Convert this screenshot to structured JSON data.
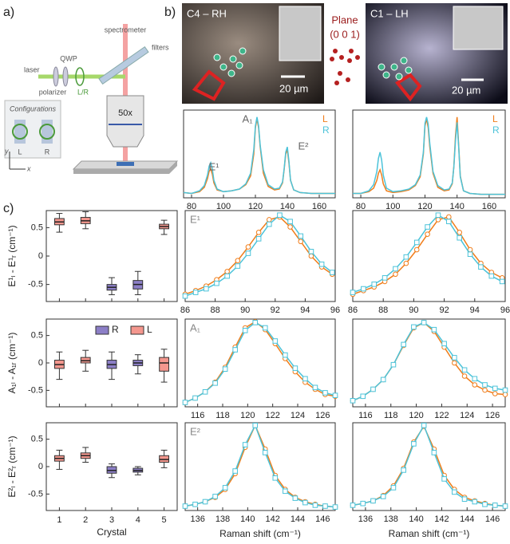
{
  "panel_labels": [
    "a)",
    "b)",
    "c)"
  ],
  "setup": {
    "spectrometer": "spectrometer",
    "filters": "filters",
    "laser": "laser",
    "qwp": "QWP",
    "polarizer": "polarizer",
    "handedness": "L/R",
    "objective": "50x",
    "configurations": "Configurations",
    "config_left": "L",
    "config_right": "R",
    "axis_y": "y",
    "axis_x": "x"
  },
  "micrographs": [
    {
      "title": "C4 – RH",
      "scale": "20 µm"
    },
    {
      "title": "C1 – LH",
      "scale": "20 µm"
    }
  ],
  "plane": {
    "label": "Plane",
    "index": "(0 0 1)"
  },
  "chart_data": [
    {
      "type": "line",
      "xlim": [
        75,
        170
      ],
      "xticks": [
        80,
        100,
        120,
        140,
        160
      ],
      "ylim": [
        0,
        1
      ],
      "annotations": [
        "E¹",
        "A₁",
        "E²"
      ],
      "x": [
        75,
        80,
        85,
        88,
        90,
        91,
        92,
        93,
        94,
        96,
        100,
        105,
        110,
        114,
        117,
        119,
        120,
        121,
        122,
        123,
        125,
        128,
        132,
        135,
        137,
        138,
        139,
        140,
        141,
        142,
        144,
        148,
        155,
        162,
        170
      ],
      "series": [
        {
          "name": "L",
          "color": "#f07d1a",
          "values": [
            0.06,
            0.05,
            0.07,
            0.12,
            0.22,
            0.3,
            0.33,
            0.27,
            0.17,
            0.09,
            0.07,
            0.08,
            0.1,
            0.15,
            0.25,
            0.5,
            0.8,
            0.9,
            0.8,
            0.58,
            0.28,
            0.13,
            0.09,
            0.1,
            0.17,
            0.32,
            0.5,
            0.55,
            0.4,
            0.2,
            0.09,
            0.06,
            0.05,
            0.05,
            0.05
          ]
        },
        {
          "name": "R",
          "color": "#4cc3d9",
          "values": [
            0.06,
            0.05,
            0.08,
            0.14,
            0.26,
            0.36,
            0.4,
            0.33,
            0.2,
            0.1,
            0.07,
            0.08,
            0.1,
            0.16,
            0.28,
            0.55,
            0.82,
            0.92,
            0.82,
            0.6,
            0.32,
            0.15,
            0.1,
            0.11,
            0.18,
            0.33,
            0.52,
            0.58,
            0.42,
            0.2,
            0.09,
            0.06,
            0.05,
            0.05,
            0.05
          ]
        }
      ]
    },
    {
      "type": "line",
      "xlim": [
        75,
        170
      ],
      "xticks": [
        80,
        100,
        120,
        140,
        160
      ],
      "ylim": [
        0,
        1
      ],
      "x": [
        75,
        80,
        85,
        88,
        90,
        91,
        92,
        93,
        94,
        96,
        100,
        105,
        110,
        114,
        117,
        119,
        120,
        121,
        122,
        123,
        125,
        128,
        132,
        135,
        137,
        138,
        139,
        140,
        141,
        142,
        144,
        148,
        155,
        162,
        170
      ],
      "series": [
        {
          "name": "L",
          "color": "#f07d1a",
          "values": [
            0.05,
            0.05,
            0.07,
            0.11,
            0.2,
            0.28,
            0.32,
            0.26,
            0.16,
            0.08,
            0.06,
            0.07,
            0.09,
            0.14,
            0.24,
            0.5,
            0.82,
            0.9,
            0.8,
            0.58,
            0.28,
            0.12,
            0.08,
            0.09,
            0.16,
            0.36,
            0.7,
            0.92,
            0.6,
            0.25,
            0.08,
            0.05,
            0.04,
            0.04,
            0.04
          ]
        },
        {
          "name": "R",
          "color": "#4cc3d9",
          "values": [
            0.05,
            0.05,
            0.08,
            0.15,
            0.3,
            0.45,
            0.52,
            0.43,
            0.26,
            0.11,
            0.07,
            0.08,
            0.1,
            0.15,
            0.26,
            0.52,
            0.85,
            0.92,
            0.84,
            0.62,
            0.3,
            0.14,
            0.09,
            0.1,
            0.17,
            0.35,
            0.65,
            0.86,
            0.58,
            0.24,
            0.08,
            0.05,
            0.04,
            0.04,
            0.04
          ]
        }
      ]
    },
    {
      "type": "box",
      "ylabel": "E¹ₗ - E¹ᵣ (cm⁻¹)",
      "ylim": [
        -0.8,
        0.8
      ],
      "yticks": [
        -0.5,
        0,
        0.5
      ],
      "series": [
        {
          "color": "#8c7fc7",
          "boxes": [
            null,
            null,
            {
              "min": -0.68,
              "q1": -0.6,
              "median": -0.55,
              "q3": -0.5,
              "max": -0.38
            },
            {
              "min": -0.68,
              "q1": -0.58,
              "median": -0.5,
              "q3": -0.43,
              "max": -0.27
            },
            null
          ]
        },
        {
          "color": "#f4978e",
          "boxes": [
            {
              "min": 0.42,
              "q1": 0.55,
              "median": 0.6,
              "q3": 0.66,
              "max": 0.75
            },
            {
              "min": 0.48,
              "q1": 0.57,
              "median": 0.62,
              "q3": 0.68,
              "max": 0.78
            },
            null,
            null,
            {
              "min": 0.38,
              "q1": 0.48,
              "median": 0.52,
              "q3": 0.56,
              "max": 0.63
            }
          ]
        }
      ]
    },
    {
      "type": "box",
      "ylabel": "A₁ₗ - A₁ᵣ (cm⁻¹)",
      "ylim": [
        -0.8,
        0.8
      ],
      "yticks": [
        -0.5,
        0,
        0.5
      ],
      "series": [
        {
          "name": "R",
          "color": "#8c7fc7",
          "boxes": [
            null,
            null,
            {
              "min": -0.3,
              "q1": -0.1,
              "median": -0.03,
              "q3": 0.05,
              "max": 0.2
            },
            {
              "min": -0.2,
              "q1": -0.05,
              "median": 0,
              "q3": 0.05,
              "max": 0.15
            },
            null
          ]
        },
        {
          "name": "L",
          "color": "#f4978e",
          "boxes": [
            {
              "min": -0.3,
              "q1": -0.1,
              "median": -0.03,
              "q3": 0.05,
              "max": 0.2
            },
            {
              "min": -0.15,
              "q1": 0,
              "median": 0.04,
              "q3": 0.1,
              "max": 0.23
            },
            null,
            null,
            {
              "min": -0.35,
              "q1": -0.15,
              "median": 0,
              "q3": 0.1,
              "max": 0.25
            }
          ]
        }
      ]
    },
    {
      "type": "box",
      "ylabel": "E²ₗ - E²ᵣ (cm⁻¹)",
      "xlabel": "Crystal",
      "categories": [
        "1",
        "2",
        "3",
        "4",
        "5"
      ],
      "ylim": [
        -0.8,
        0.8
      ],
      "yticks": [
        -0.5,
        0,
        0.5
      ],
      "series": [
        {
          "color": "#8c7fc7",
          "boxes": [
            null,
            null,
            {
              "min": -0.2,
              "q1": -0.12,
              "median": -0.07,
              "q3": 0,
              "max": 0.05
            },
            {
              "min": -0.15,
              "q1": -0.1,
              "median": -0.07,
              "q3": -0.03,
              "max": 0
            },
            null
          ]
        },
        {
          "color": "#f4978e",
          "boxes": [
            {
              "min": -0.05,
              "q1": 0.1,
              "median": 0.15,
              "q3": 0.2,
              "max": 0.3
            },
            {
              "min": 0.08,
              "q1": 0.15,
              "median": 0.2,
              "q3": 0.25,
              "max": 0.35
            },
            null,
            null,
            {
              "min": -0.02,
              "q1": 0.08,
              "median": 0.13,
              "q3": 0.2,
              "max": 0.3
            }
          ]
        }
      ]
    },
    {
      "type": "line",
      "label": "E¹",
      "xlim": [
        86,
        96
      ],
      "xticks": [
        86,
        88,
        90,
        92,
        94,
        96
      ],
      "ylim": [
        0,
        1
      ],
      "x": [
        86,
        86.7,
        87.4,
        88.1,
        88.8,
        89.5,
        90.2,
        90.9,
        91.6,
        92.3,
        93,
        93.7,
        94.4,
        95.1,
        95.8
      ],
      "series": [
        {
          "color": "#f07d1a",
          "marker": "circle",
          "values": [
            0.08,
            0.12,
            0.17,
            0.24,
            0.33,
            0.45,
            0.6,
            0.76,
            0.9,
            0.93,
            0.82,
            0.66,
            0.5,
            0.38,
            0.3
          ]
        },
        {
          "color": "#4cc3d9",
          "marker": "square",
          "values": [
            0.06,
            0.1,
            0.14,
            0.2,
            0.28,
            0.39,
            0.53,
            0.69,
            0.85,
            0.95,
            0.88,
            0.72,
            0.55,
            0.41,
            0.32
          ]
        }
      ]
    },
    {
      "type": "line",
      "xlim": [
        86,
        96
      ],
      "xticks": [
        86,
        88,
        90,
        92,
        94,
        96
      ],
      "ylim": [
        0,
        1
      ],
      "x": [
        86,
        86.7,
        87.4,
        88.1,
        88.8,
        89.5,
        90.2,
        90.9,
        91.6,
        92.3,
        93,
        93.7,
        94.4,
        95.1,
        95.8
      ],
      "series": [
        {
          "color": "#f07d1a",
          "marker": "circle",
          "values": [
            0.08,
            0.12,
            0.16,
            0.22,
            0.3,
            0.42,
            0.57,
            0.74,
            0.9,
            0.93,
            0.76,
            0.57,
            0.42,
            0.32,
            0.26
          ]
        },
        {
          "color": "#4cc3d9",
          "marker": "square",
          "values": [
            0.1,
            0.14,
            0.19,
            0.26,
            0.36,
            0.49,
            0.65,
            0.82,
            0.95,
            0.88,
            0.7,
            0.52,
            0.38,
            0.28,
            0.22
          ]
        }
      ]
    },
    {
      "type": "line",
      "label": "A₁",
      "xlim": [
        115,
        127
      ],
      "xticks": [
        116,
        118,
        120,
        122,
        124,
        126
      ],
      "ylim": [
        0,
        1
      ],
      "x": [
        115,
        115.8,
        116.6,
        117.4,
        118.2,
        119,
        119.8,
        120.6,
        121.4,
        122.2,
        123,
        123.8,
        124.6,
        125.4,
        126.2,
        127
      ],
      "series": [
        {
          "color": "#f07d1a",
          "marker": "circle",
          "values": [
            0.05,
            0.1,
            0.17,
            0.28,
            0.45,
            0.68,
            0.9,
            0.97,
            0.88,
            0.72,
            0.55,
            0.4,
            0.28,
            0.2,
            0.14,
            0.12
          ]
        },
        {
          "color": "#4cc3d9",
          "marker": "square",
          "values": [
            0.05,
            0.1,
            0.17,
            0.27,
            0.43,
            0.65,
            0.87,
            0.96,
            0.9,
            0.75,
            0.59,
            0.44,
            0.32,
            0.22,
            0.16,
            0.13
          ]
        }
      ]
    },
    {
      "type": "line",
      "xlim": [
        115,
        127
      ],
      "xticks": [
        116,
        118,
        120,
        122,
        124,
        126
      ],
      "ylim": [
        0,
        1
      ],
      "x": [
        115,
        115.8,
        116.6,
        117.4,
        118.2,
        119,
        119.8,
        120.6,
        121.4,
        122.2,
        123,
        123.8,
        124.6,
        125.4,
        126.2,
        127
      ],
      "series": [
        {
          "color": "#f07d1a",
          "marker": "circle",
          "values": [
            0.07,
            0.12,
            0.2,
            0.31,
            0.48,
            0.7,
            0.9,
            0.96,
            0.86,
            0.68,
            0.5,
            0.35,
            0.25,
            0.19,
            0.15,
            0.14
          ]
        },
        {
          "color": "#4cc3d9",
          "marker": "square",
          "values": [
            0.07,
            0.12,
            0.2,
            0.31,
            0.48,
            0.71,
            0.91,
            0.96,
            0.88,
            0.72,
            0.56,
            0.42,
            0.32,
            0.25,
            0.21,
            0.19
          ]
        }
      ]
    },
    {
      "type": "line",
      "label": "E²",
      "xlabel": "Raman shift (cm⁻¹)",
      "xlim": [
        135,
        147
      ],
      "xticks": [
        136,
        138,
        140,
        142,
        144,
        146
      ],
      "ylim": [
        0,
        1
      ],
      "x": [
        135,
        135.8,
        136.6,
        137.4,
        138.2,
        139,
        139.8,
        140.6,
        141.4,
        142.2,
        143,
        143.8,
        144.6,
        145.4,
        146.2,
        147
      ],
      "series": [
        {
          "color": "#f07d1a",
          "marker": "circle",
          "values": [
            0.05,
            0.07,
            0.1,
            0.15,
            0.24,
            0.42,
            0.72,
            0.97,
            0.7,
            0.4,
            0.24,
            0.15,
            0.1,
            0.07,
            0.05,
            0.04
          ]
        },
        {
          "color": "#4cc3d9",
          "marker": "square",
          "values": [
            0.05,
            0.07,
            0.1,
            0.16,
            0.26,
            0.45,
            0.75,
            0.97,
            0.66,
            0.37,
            0.22,
            0.14,
            0.09,
            0.06,
            0.05,
            0.04
          ]
        }
      ]
    },
    {
      "type": "line",
      "xlabel": "Raman shift (cm⁻¹)",
      "xlim": [
        135,
        147
      ],
      "xticks": [
        136,
        138,
        140,
        142,
        144,
        146
      ],
      "ylim": [
        0,
        1
      ],
      "x": [
        135,
        135.8,
        136.6,
        137.4,
        138.2,
        139,
        139.8,
        140.6,
        141.4,
        142.2,
        143,
        143.8,
        144.6,
        145.4,
        146.2,
        147
      ],
      "series": [
        {
          "color": "#f07d1a",
          "marker": "circle",
          "values": [
            0.06,
            0.08,
            0.11,
            0.17,
            0.28,
            0.48,
            0.78,
            0.96,
            0.7,
            0.4,
            0.24,
            0.15,
            0.11,
            0.08,
            0.06,
            0.05
          ]
        },
        {
          "color": "#4cc3d9",
          "marker": "square",
          "values": [
            0.06,
            0.08,
            0.11,
            0.16,
            0.26,
            0.46,
            0.76,
            0.97,
            0.66,
            0.36,
            0.21,
            0.13,
            0.1,
            0.07,
            0.06,
            0.05
          ]
        }
      ]
    }
  ]
}
